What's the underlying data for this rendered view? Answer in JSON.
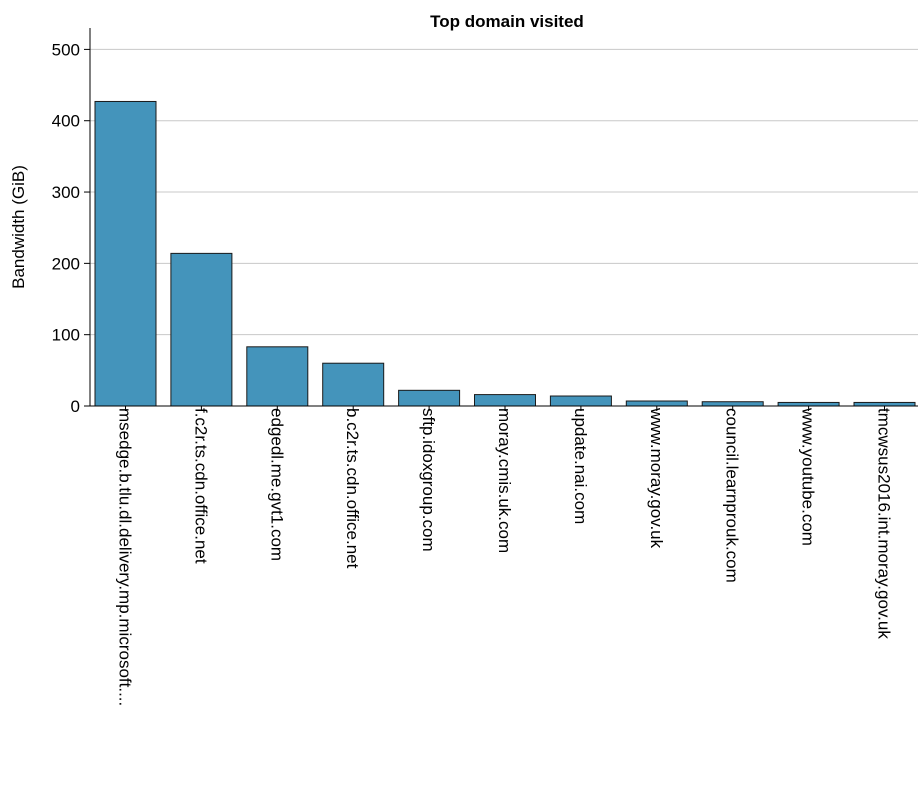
{
  "chart_data": {
    "type": "bar",
    "title": "Top domain visited",
    "xlabel": "",
    "ylabel": "Bandwidth  (GiB)",
    "ylim": [
      0,
      530
    ],
    "yticks": [
      0,
      100,
      200,
      300,
      400,
      500
    ],
    "grid": true,
    "bar_color": "#4494bb",
    "categories": [
      "msedge.b.tlu.dl.delivery.mp.microsoft....",
      "f.c2r.ts.cdn.office.net",
      "edgedl.me.gvt1.com",
      "b.c2r.ts.cdn.office.net",
      "sftp.idoxgroup.com",
      "moray.cmis.uk.com",
      "update.nai.com",
      "www.moray.gov.uk",
      "council.learnprouk.com",
      "www.youtube.com",
      "tmcwsus2016.int.moray.gov.uk"
    ],
    "values": [
      427,
      214,
      83,
      60,
      22,
      16,
      14,
      7,
      6,
      5,
      5
    ]
  }
}
